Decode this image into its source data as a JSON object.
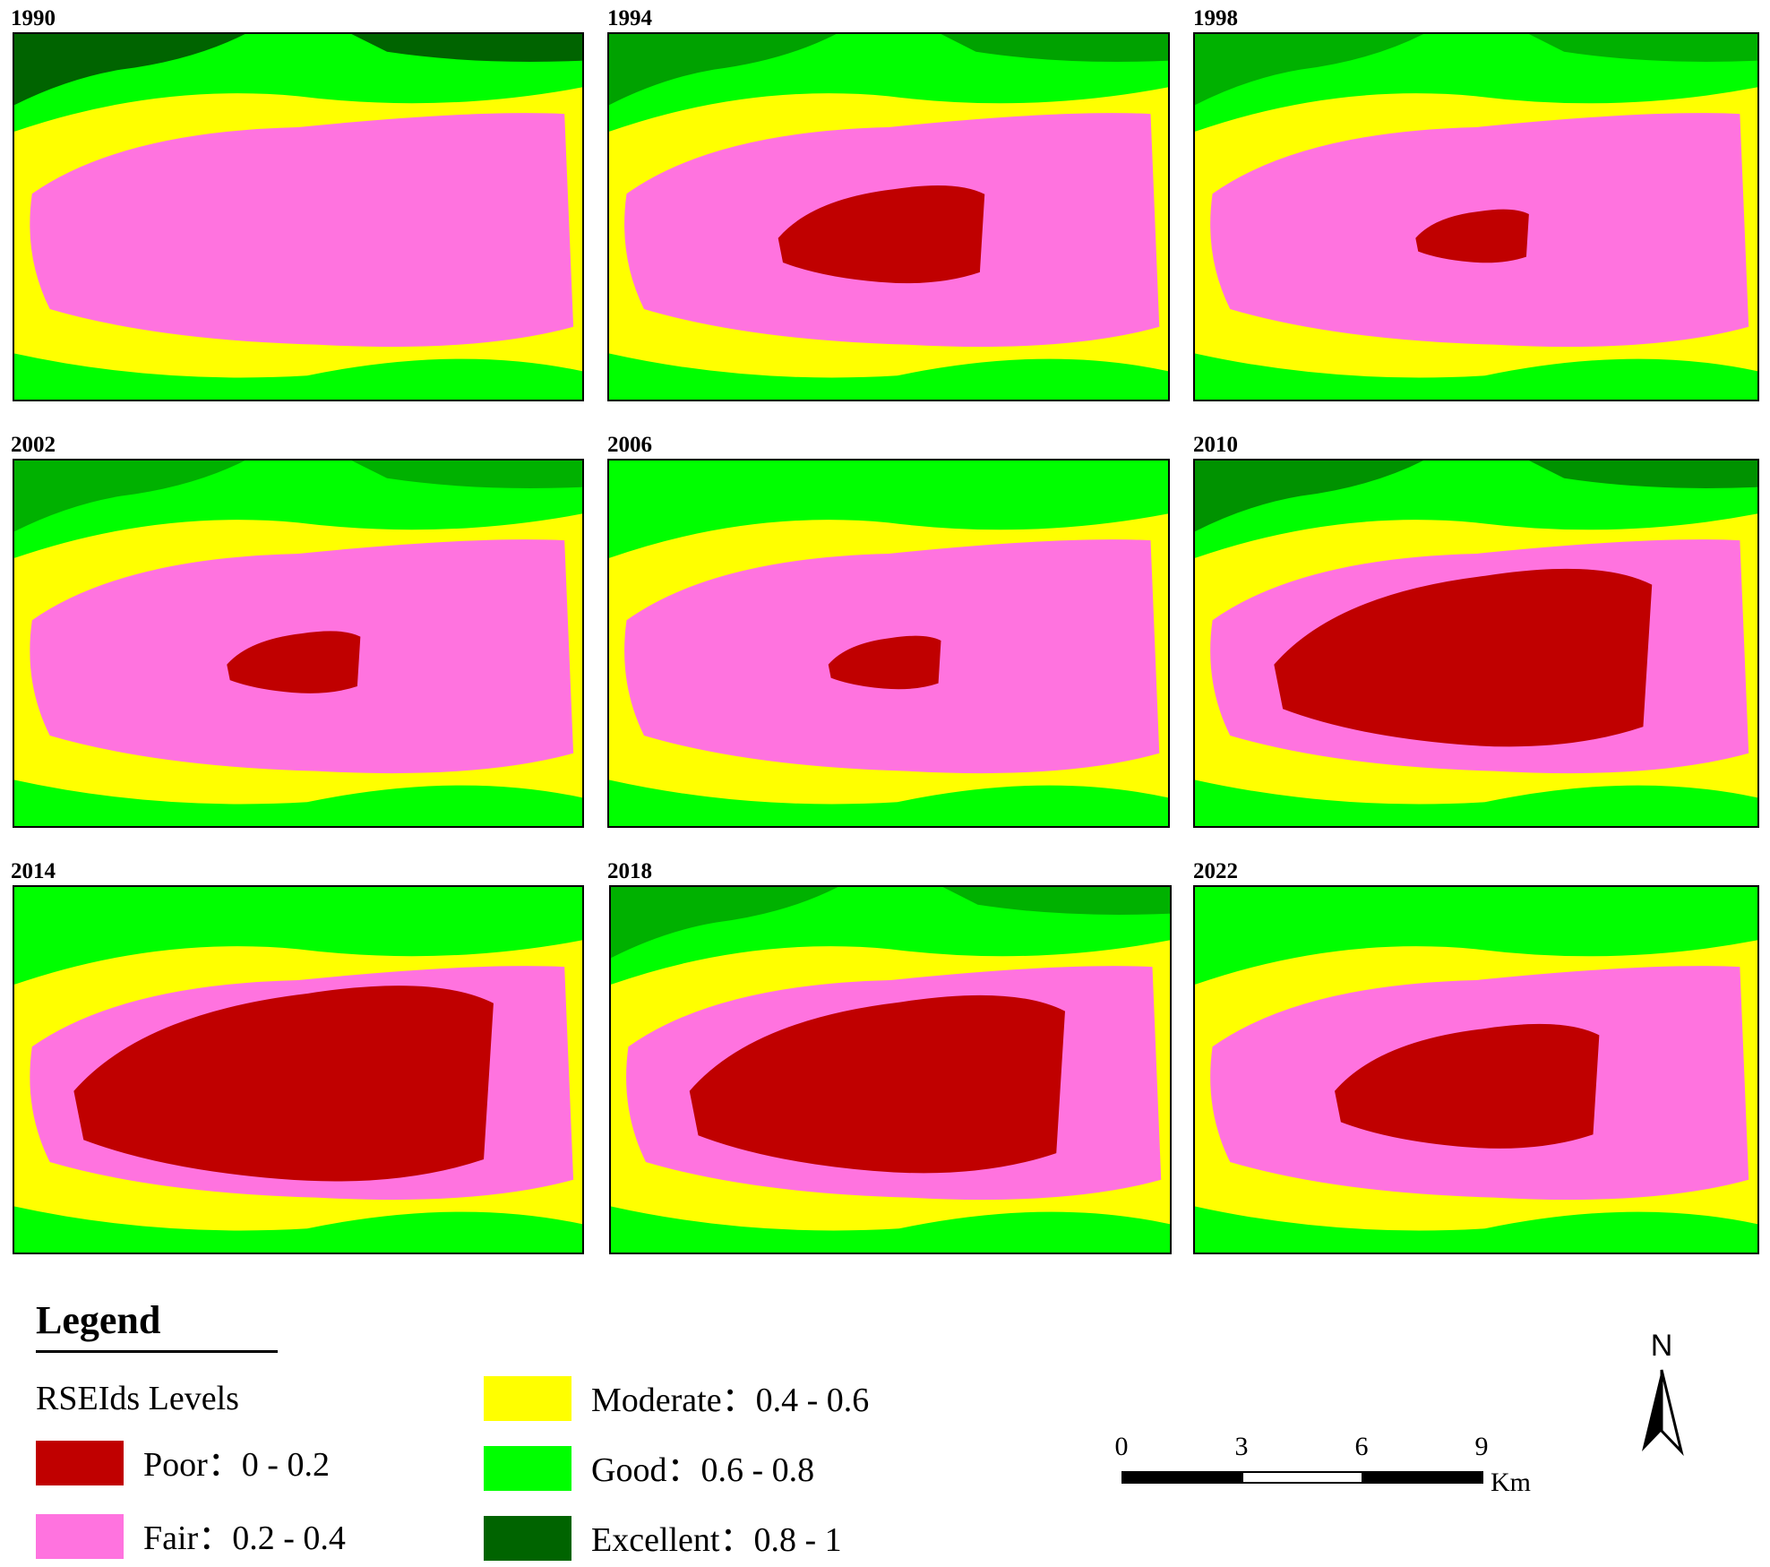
{
  "panels": [
    {
      "year": "1990"
    },
    {
      "year": "1994"
    },
    {
      "year": "1998"
    },
    {
      "year": "2002"
    },
    {
      "year": "2006"
    },
    {
      "year": "2010"
    },
    {
      "year": "2014"
    },
    {
      "year": "2018"
    },
    {
      "year": "2022"
    }
  ],
  "colors": {
    "poor": "#c00000",
    "fair": "#ff73df",
    "moderate": "#ffff00",
    "good": "#00ff00",
    "excellent": "#006400"
  },
  "legend": {
    "title": "Legend",
    "subtitle": "RSEIds Levels",
    "items": [
      {
        "label": "Poor：0 - 0.2",
        "color": "#c00000"
      },
      {
        "label": "Fair：0.2 - 0.4",
        "color": "#ff73df"
      },
      {
        "label": "Moderate：0.4 - 0.6",
        "color": "#ffff00"
      },
      {
        "label": "Good：0.6 - 0.8",
        "color": "#00ff00"
      },
      {
        "label": "Excellent：0.8 - 1",
        "color": "#006400"
      }
    ]
  },
  "north_arrow": {
    "label": "N"
  },
  "scale_bar": {
    "ticks": [
      "0",
      "3",
      "6",
      "9"
    ],
    "unit": "Km"
  }
}
